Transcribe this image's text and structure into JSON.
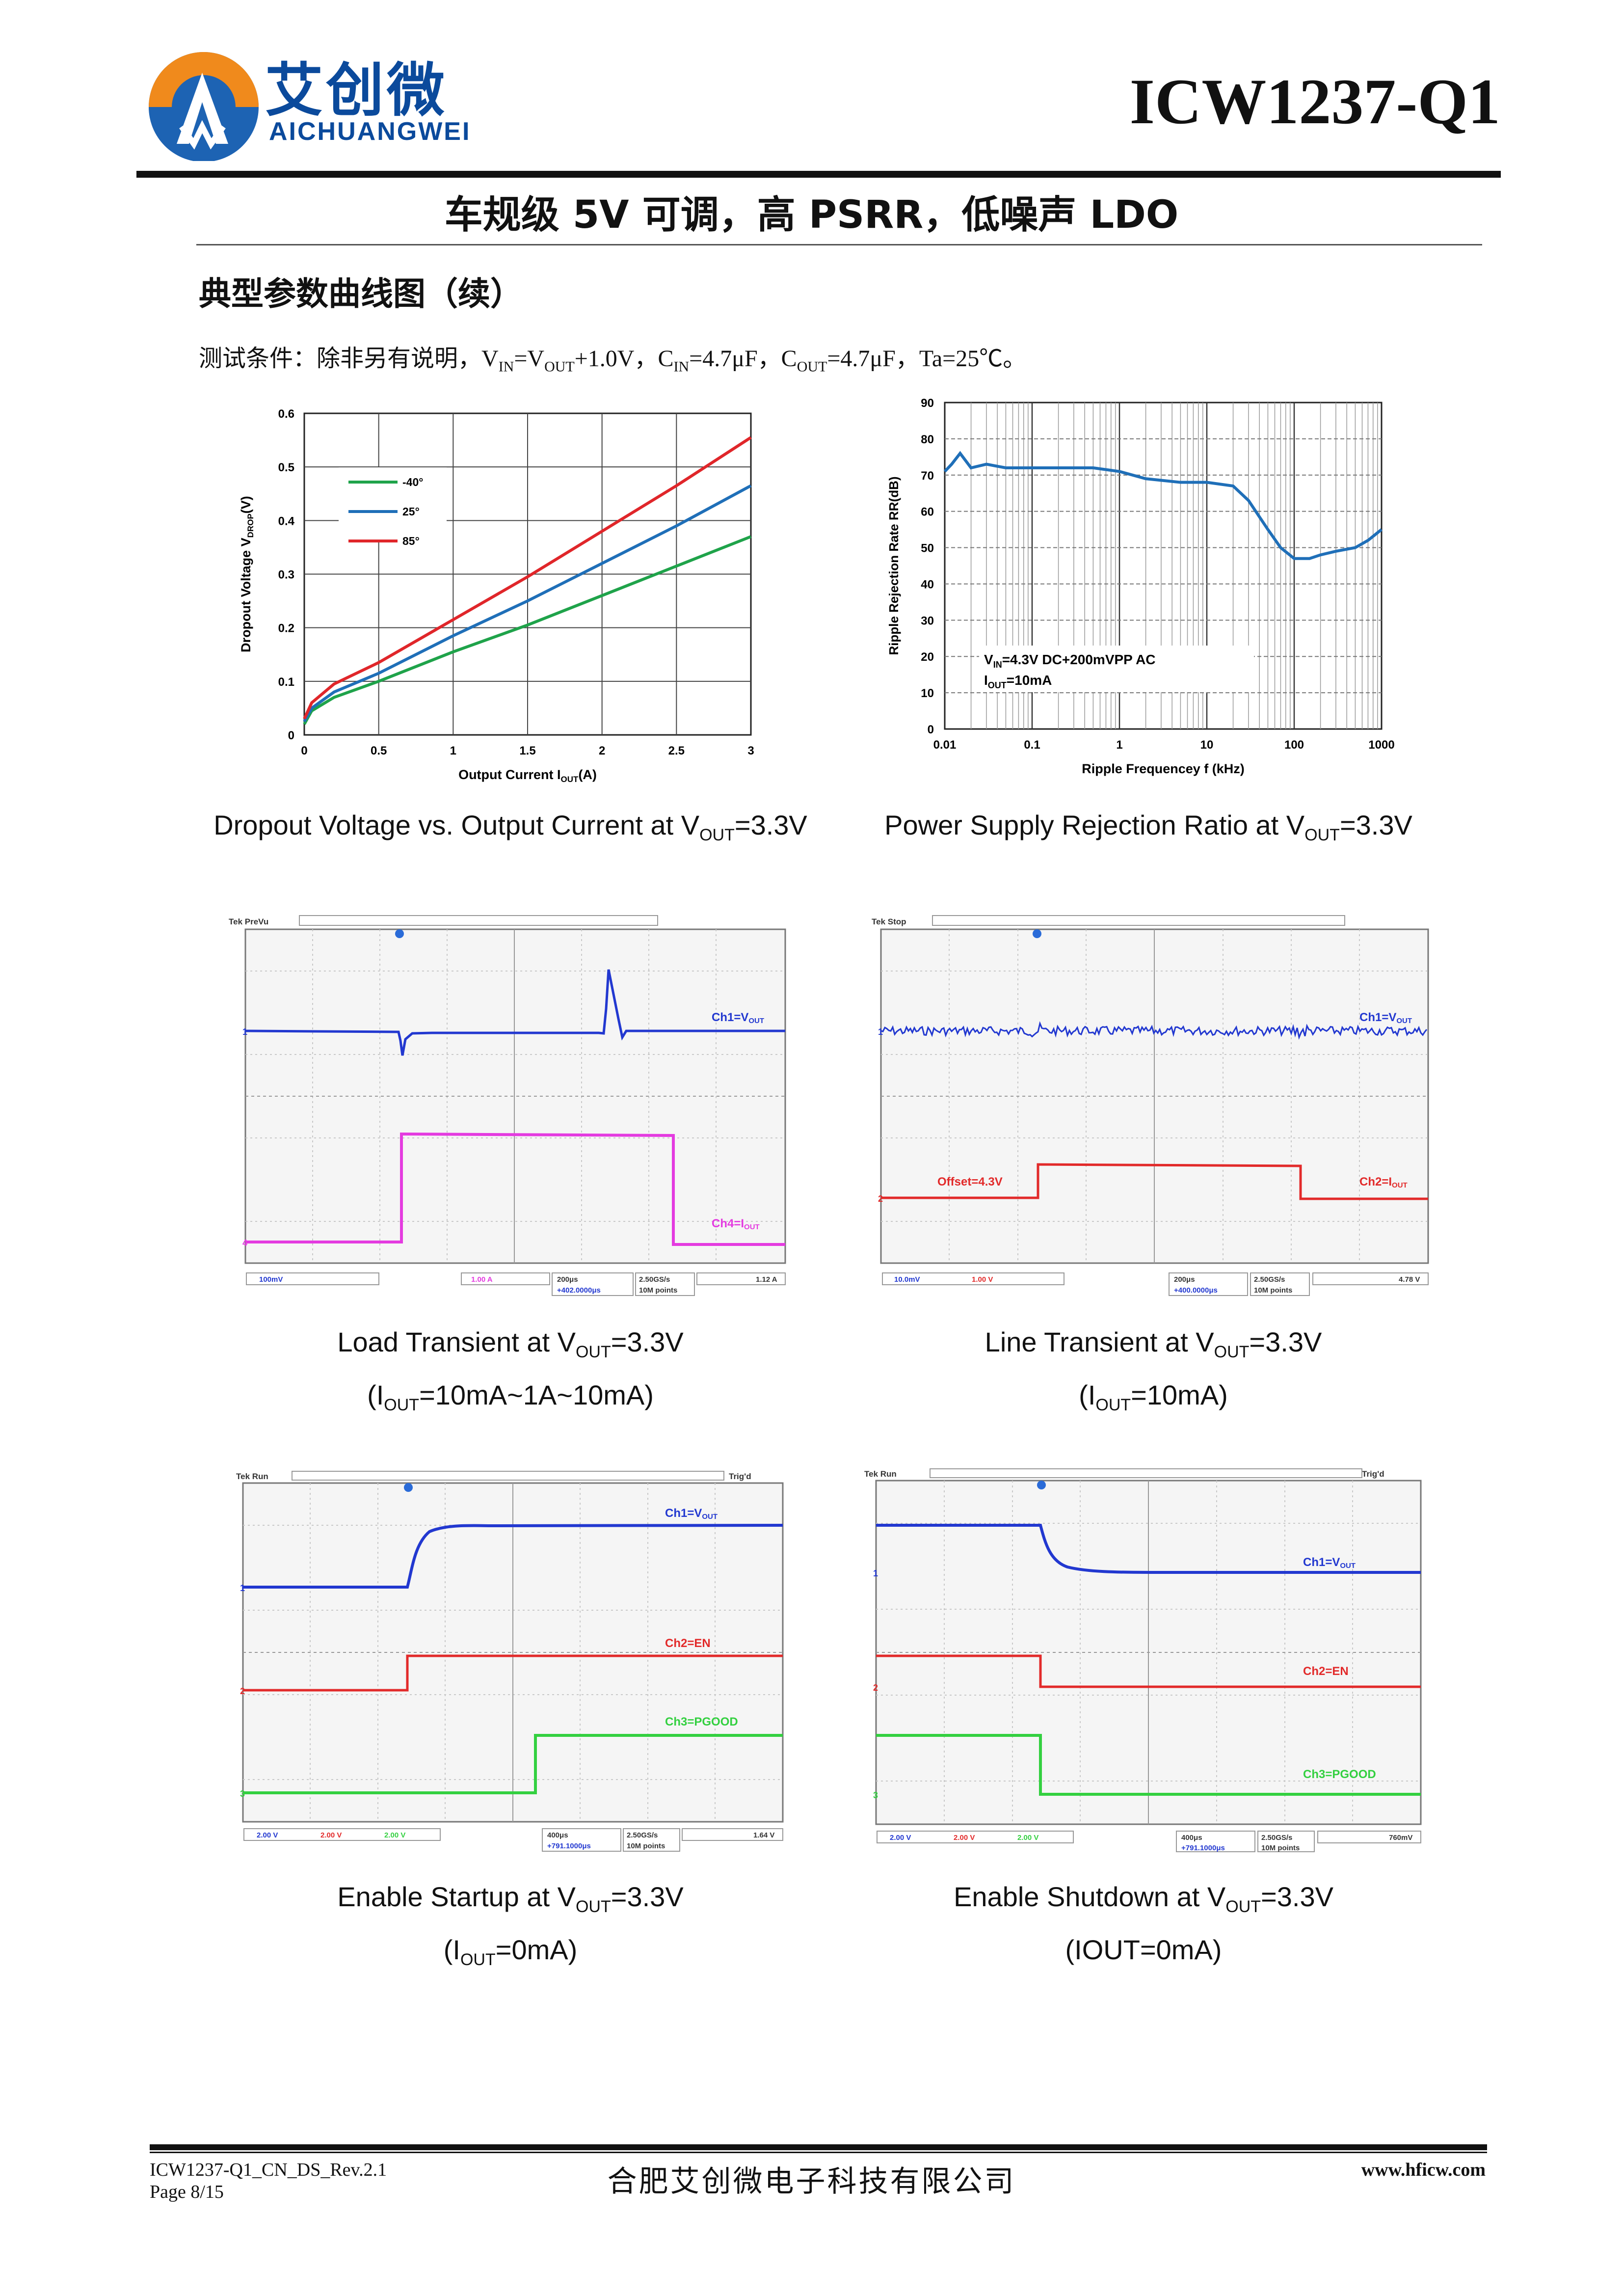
{
  "header": {
    "logo_cn": "艾创微",
    "logo_en": "AICHUANGWEI",
    "part_number": "ICW1237-Q1",
    "subtitle": "车规级 5V 可调，高 PSRR，低噪声 LDO"
  },
  "section_title": "典型参数曲线图（续）",
  "conditions": {
    "prefix": "测试条件：除非另有说明，",
    "vin_sym": "V",
    "vin_sub": "IN",
    "vin_eq": "=V",
    "vout_sub": "OUT",
    "vin_tail": "+1.0V，",
    "cin_sym": "C",
    "cin_sub": "IN",
    "cin_val": "=4.7μF，",
    "cout_sym": "C",
    "cout_sub": "OUT",
    "cout_val": "=4.7μF，",
    "ta": "Ta=25℃。"
  },
  "chart_data": [
    {
      "type": "line",
      "title": "",
      "xlabel": "Output Current I",
      "xlabel_sub": "OUT",
      "xlabel_unit": "(A)",
      "ylabel": "Dropout Voltage V",
      "ylabel_sub": "DROP",
      "ylabel_unit": "(V)",
      "xlim": [
        0,
        3
      ],
      "ylim": [
        0,
        0.6
      ],
      "xticks": [
        "0",
        "0.5",
        "1",
        "1.5",
        "2",
        "2.5",
        "3"
      ],
      "yticks": [
        "0",
        "0.1",
        "0.2",
        "0.3",
        "0.4",
        "0.5",
        "0.6"
      ],
      "grid": true,
      "legend_position": "top-left",
      "x": [
        0,
        0.05,
        0.2,
        0.5,
        1,
        1.5,
        2,
        2.5,
        3
      ],
      "series": [
        {
          "name": "-40°",
          "color": "#1fa34a",
          "values": [
            0.02,
            0.045,
            0.07,
            0.1,
            0.155,
            0.205,
            0.26,
            0.315,
            0.37
          ]
        },
        {
          "name": "25°",
          "color": "#1f6fb8",
          "values": [
            0.025,
            0.05,
            0.08,
            0.115,
            0.185,
            0.25,
            0.32,
            0.39,
            0.465
          ]
        },
        {
          "name": "85°",
          "color": "#e0262a",
          "values": [
            0.03,
            0.06,
            0.095,
            0.135,
            0.215,
            0.295,
            0.38,
            0.465,
            0.555
          ]
        }
      ]
    },
    {
      "type": "line",
      "title": "",
      "xlabel": "Ripple Frequencey  f (kHz)",
      "ylabel": "Ripple Rejection Rate RR(dB)",
      "x_scale": "log",
      "xlim": [
        0.01,
        1000
      ],
      "ylim": [
        0,
        90
      ],
      "xticks": [
        "0.01",
        "0.1",
        "1",
        "10",
        "100",
        "1000"
      ],
      "yticks": [
        "0",
        "10",
        "20",
        "30",
        "40",
        "50",
        "60",
        "70",
        "80",
        "90"
      ],
      "grid": true,
      "annotation_line1_sym": "V",
      "annotation_line1_sub": "IN",
      "annotation_line1_rest": "=4.3V DC+200mVPP AC",
      "annotation_line2_sym": "I",
      "annotation_line2_sub": "OUT",
      "annotation_line2_rest": "=10mA",
      "x": [
        0.01,
        0.012,
        0.015,
        0.02,
        0.03,
        0.05,
        0.1,
        0.2,
        0.5,
        1,
        2,
        5,
        10,
        20,
        30,
        50,
        70,
        100,
        150,
        200,
        300,
        500,
        700,
        1000
      ],
      "series": [
        {
          "name": "",
          "color": "#1f6fb8",
          "values": [
            71,
            73,
            76,
            72,
            73,
            72,
            72,
            72,
            72,
            71,
            69,
            68,
            68,
            67,
            63,
            55,
            50,
            47,
            47,
            48,
            49,
            50,
            52,
            55
          ]
        }
      ]
    }
  ],
  "captions": {
    "c1_pre": "Dropout Voltage vs. Output Current at V",
    "c1_sub": "OUT",
    "c1_post": "=3.3V",
    "c2_pre": "Power Supply Rejection Ratio at V",
    "c2_sub": "OUT",
    "c2_post": "=3.3V",
    "c3_pre": "Load Transient at V",
    "c3_sub": "OUT",
    "c3_post": "=3.3V",
    "c3b_pre": "(I",
    "c3b_sub": "OUT",
    "c3b_post": "=10mA~1A~10mA)",
    "c4_pre": "Line Transient at V",
    "c4_sub": "OUT",
    "c4_post": "=3.3V",
    "c4b_pre": "(I",
    "c4b_sub": "OUT",
    "c4b_post": "=10mA)",
    "c5_pre": "Enable Startup at V",
    "c5_sub": "OUT",
    "c5_post": "=3.3V",
    "c5b_pre": "(I",
    "c5b_sub": "OUT",
    "c5b_post": "=0mA)",
    "c6_pre": "Enable Shutdown at V",
    "c6_sub": "OUT",
    "c6_post": "=3.3V",
    "c6b": "(IOUT=0mA)"
  },
  "scopes": {
    "s1": {
      "status": "Tek PreVu",
      "ch1_label": "Ch1=V",
      "ch1_sub": "OUT",
      "ch2_label": "Ch4=I",
      "ch2_sub": "OUT",
      "bar1": "100mV",
      "bar2": "1.00 A",
      "bar3": "200μs",
      "bar4": "2.50GS/s",
      "bar5": "1.12 A",
      "bar6": "+402.0000μs",
      "bar7": "10M points"
    },
    "s2": {
      "status": "Tek Stop",
      "ch1_label": "Ch1=V",
      "ch1_sub": "OUT",
      "ch2_label": "Ch2=I",
      "ch2_sub": "OUT",
      "offset": "Offset=4.3V",
      "bar1": "10.0mV",
      "bar2": "1.00 V",
      "bar3": "200μs",
      "bar4": "2.50GS/s",
      "bar5": "4.78 V",
      "bar6": "+400.0000μs",
      "bar7": "10M points"
    },
    "s3": {
      "status": "Tek Run",
      "trig": "Trig'd",
      "ch1_label": "Ch1=V",
      "ch1_sub": "OUT",
      "ch2_label": "Ch2=EN",
      "ch3_label": "Ch3=PGOOD",
      "bar1": "2.00 V",
      "bar2": "2.00 V",
      "bar3": "2.00 V",
      "bar4": "400μs",
      "bar5": "2.50GS/s",
      "bar6": "1.64 V",
      "bar7": "+791.1000μs",
      "bar8": "10M points"
    },
    "s4": {
      "status": "Tek Run",
      "trig": "Trig'd",
      "ch1_label": "Ch1=V",
      "ch1_sub": "OUT",
      "ch2_label": "Ch2=EN",
      "ch3_label": "Ch3=PGOOD",
      "bar1": "2.00 V",
      "bar2": "2.00 V",
      "bar3": "2.00 V",
      "bar4": "400μs",
      "bar5": "2.50GS/s",
      "bar6": "760mV",
      "bar7": "+791.1000μs",
      "bar8": "10M points"
    }
  },
  "footer": {
    "doc_id": "ICW1237-Q1_CN_DS_Rev.2.1",
    "page": "Page 8/15",
    "company": "合肥艾创微电子科技有限公司",
    "website": "www.hficw.com"
  }
}
